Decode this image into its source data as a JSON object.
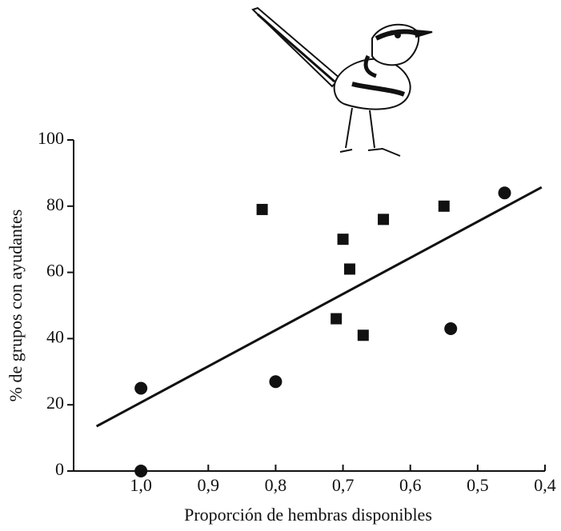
{
  "chart_data": {
    "type": "scatter",
    "x_label": "Proporción de hembras disponibles",
    "y_label": "% de grupos con ayudantes",
    "xlim": [
      1.1,
      0.4
    ],
    "ylim": [
      0,
      100
    ],
    "xticks": [
      {
        "value": 1.0,
        "label": "1,0"
      },
      {
        "value": 0.9,
        "label": "0,9"
      },
      {
        "value": 0.8,
        "label": "0,8"
      },
      {
        "value": 0.7,
        "label": "0,7"
      },
      {
        "value": 0.6,
        "label": "0,6"
      },
      {
        "value": 0.5,
        "label": "0,5"
      },
      {
        "value": 0.4,
        "label": "0,4"
      }
    ],
    "yticks": [
      0,
      20,
      40,
      60,
      80,
      100
    ],
    "series": [
      {
        "marker": "circle",
        "color": "#111111",
        "x": [
          1.0,
          1.0,
          0.8,
          0.54,
          0.46
        ],
        "y": [
          25,
          0,
          27,
          43,
          84
        ]
      },
      {
        "marker": "square",
        "color": "#111111",
        "x": [
          0.82,
          0.7,
          0.69,
          0.71,
          0.67,
          0.64,
          0.55
        ],
        "y": [
          79,
          70,
          61,
          46,
          41,
          76,
          80
        ]
      }
    ],
    "trend_line": {
      "color": "#111111",
      "x": [
        1.066,
        0.405
      ],
      "y": [
        13.5,
        85.7
      ]
    }
  }
}
